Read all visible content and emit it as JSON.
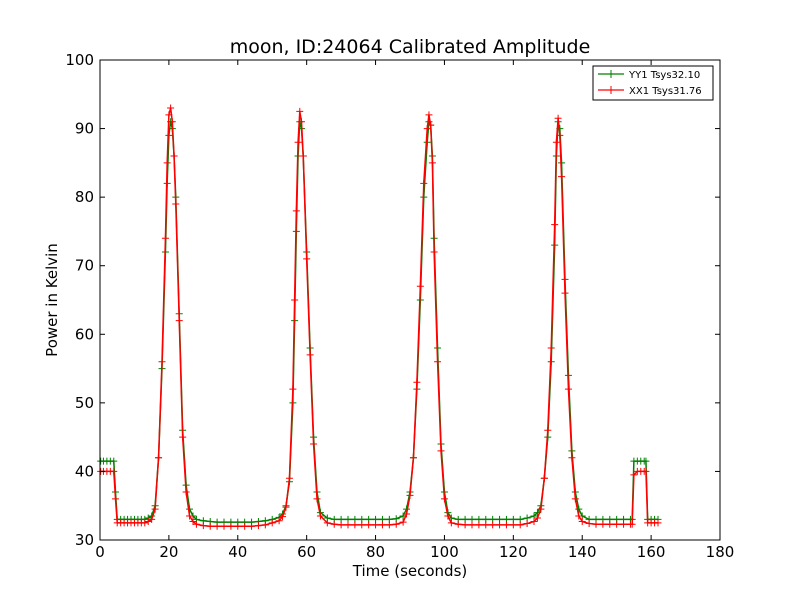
{
  "chart_data": {
    "type": "line",
    "title": "moon, ID:24064 Calibrated Amplitude",
    "xlabel": "Time (seconds)",
    "ylabel": "Power in Kelvin",
    "xlim": [
      0,
      180
    ],
    "ylim": [
      30,
      100
    ],
    "xticks": [
      0,
      20,
      40,
      60,
      80,
      100,
      120,
      140,
      160,
      180
    ],
    "yticks": [
      30,
      40,
      50,
      60,
      70,
      80,
      90,
      100
    ],
    "grid": false,
    "legend_position": "top-right",
    "series": [
      {
        "name": "YY1 Tsys32.10",
        "color": "#008000",
        "marker": "+",
        "x": [
          0.2,
          1,
          2,
          3,
          4,
          4.5,
          5,
          6,
          7,
          8,
          9,
          10,
          11,
          12,
          13,
          14,
          15,
          16,
          17,
          18,
          19,
          19.5,
          20,
          20.5,
          21,
          21.5,
          22,
          23,
          24,
          25,
          26,
          27,
          28,
          30,
          32,
          34,
          36,
          38,
          40,
          42,
          44,
          46,
          48,
          50,
          52,
          53,
          54,
          55,
          56,
          56.5,
          57,
          57.5,
          58,
          58.5,
          59,
          60,
          61,
          62,
          63,
          64,
          66,
          68,
          70,
          72,
          74,
          76,
          78,
          80,
          82,
          84,
          86,
          88,
          89,
          90,
          91,
          92,
          93,
          94,
          95,
          95.5,
          96,
          96.5,
          97,
          98,
          99,
          100,
          101,
          102,
          104,
          106,
          108,
          110,
          112,
          114,
          116,
          118,
          120,
          122,
          124,
          126,
          127,
          128,
          129,
          130,
          131,
          132,
          132.5,
          133,
          133.5,
          134,
          135,
          136,
          137,
          138,
          139,
          140,
          142,
          144,
          146,
          148,
          150,
          152,
          154,
          154.5,
          155,
          156,
          157,
          158,
          158.5,
          159,
          160,
          161,
          162
        ],
        "y": [
          41.5,
          41.5,
          41.5,
          41.5,
          41.5,
          37,
          33,
          33,
          33,
          33,
          33,
          33,
          33,
          33,
          33,
          33.2,
          33.5,
          35,
          42,
          55,
          72,
          82,
          89,
          91,
          90,
          86,
          80,
          63,
          46,
          38,
          34.5,
          33.5,
          33,
          32.8,
          32.7,
          32.6,
          32.6,
          32.6,
          32.6,
          32.6,
          32.6,
          32.7,
          32.8,
          33,
          33.3,
          33.8,
          35,
          38.5,
          50,
          62,
          75,
          86,
          91,
          90,
          86,
          72,
          58,
          45,
          37,
          34,
          33.2,
          33,
          33,
          33,
          33,
          33,
          33,
          33,
          33,
          33,
          33.1,
          33.5,
          34.5,
          37,
          42,
          52,
          65,
          80,
          88,
          91,
          90.5,
          86,
          74,
          58,
          44,
          37,
          34,
          33.2,
          33,
          33,
          33,
          33,
          33,
          33,
          33,
          33,
          33,
          33,
          33.2,
          33.5,
          34,
          35,
          39,
          45,
          56,
          73,
          86,
          91,
          90,
          85,
          68,
          54,
          43,
          37,
          34.5,
          33.5,
          33,
          33,
          33,
          33,
          33,
          33,
          33,
          33,
          41.5,
          41.5,
          41.5,
          41.5,
          41.5,
          33,
          33,
          33,
          33
        ]
      },
      {
        "name": "XX1 Tsys31.76",
        "color": "#ff0000",
        "marker": "+",
        "x": [
          0.2,
          1,
          2,
          3,
          4,
          4.5,
          5,
          6,
          7,
          8,
          9,
          10,
          11,
          12,
          13,
          14,
          15,
          16,
          17,
          18,
          19,
          19.5,
          20,
          20.5,
          21,
          21.5,
          22,
          23,
          24,
          25,
          26,
          27,
          28,
          30,
          32,
          34,
          36,
          38,
          40,
          42,
          44,
          46,
          48,
          50,
          52,
          53,
          54,
          55,
          56,
          56.5,
          57,
          57.5,
          58,
          58.5,
          59,
          60,
          61,
          62,
          63,
          64,
          66,
          68,
          70,
          72,
          74,
          76,
          78,
          80,
          82,
          84,
          86,
          88,
          89,
          90,
          91,
          92,
          93,
          94,
          95,
          95.5,
          96,
          96.5,
          97,
          98,
          99,
          100,
          101,
          102,
          104,
          106,
          108,
          110,
          112,
          114,
          116,
          118,
          120,
          122,
          124,
          126,
          127,
          128,
          129,
          130,
          131,
          132,
          132.5,
          133,
          133.5,
          134,
          135,
          136,
          137,
          138,
          139,
          140,
          142,
          144,
          146,
          148,
          150,
          152,
          154,
          154.5,
          155,
          156,
          157,
          158,
          158.5,
          159,
          160,
          161,
          162
        ],
        "y": [
          40,
          40,
          40,
          40,
          40,
          36,
          32.5,
          32.5,
          32.5,
          32.5,
          32.5,
          32.5,
          32.5,
          32.5,
          32.5,
          32.7,
          33,
          34.5,
          42,
          56,
          74,
          85,
          92,
          93,
          91,
          86,
          79,
          62,
          45,
          37,
          33.5,
          32.7,
          32.3,
          32.1,
          32,
          32,
          32,
          32,
          32,
          32,
          32,
          32.1,
          32.2,
          32.5,
          32.8,
          33.4,
          34.8,
          39,
          52,
          65,
          78,
          88,
          92.5,
          91,
          86,
          71,
          57,
          44,
          36,
          33.5,
          32.5,
          32.3,
          32.2,
          32.2,
          32.2,
          32.2,
          32.2,
          32.2,
          32.2,
          32.2,
          32.3,
          32.6,
          33.8,
          36.5,
          42,
          53,
          67,
          82,
          90,
          92,
          90.5,
          85,
          72,
          56,
          43,
          36,
          33.5,
          32.5,
          32.3,
          32.2,
          32.2,
          32.2,
          32.2,
          32.2,
          32.2,
          32.2,
          32.2,
          32.2,
          32.4,
          32.7,
          33.2,
          34.5,
          39,
          46,
          58,
          76,
          88,
          91.5,
          89,
          83,
          66,
          52,
          42,
          36,
          33.5,
          32.7,
          32.4,
          32.3,
          32.3,
          32.3,
          32.3,
          32.3,
          32.3,
          32.3,
          39.5,
          40,
          40,
          40,
          40,
          32.5,
          32.5,
          32.5,
          32.5
        ]
      }
    ]
  }
}
